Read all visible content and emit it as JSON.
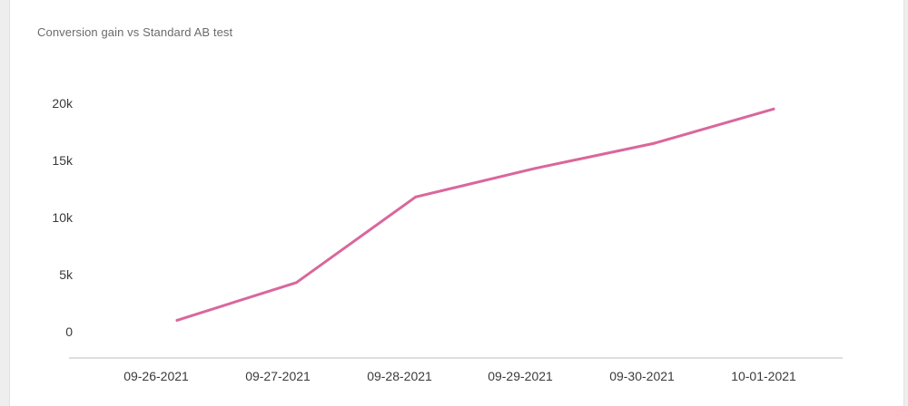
{
  "chart_data": {
    "type": "line",
    "title": "Conversion gain vs Standard AB test",
    "xlabel": "",
    "ylabel": "",
    "categories": [
      "09-26-2021",
      "09-27-2021",
      "09-28-2021",
      "09-29-2021",
      "09-30-2021",
      "10-01-2021"
    ],
    "y_ticks": [
      "0",
      "5k",
      "10k",
      "15k",
      "20k"
    ],
    "ylim": [
      0,
      20000
    ],
    "grid": false,
    "legend": "none",
    "series": [
      {
        "color": "#d9679c",
        "x": [
          "09-26-2021",
          "09-27-2021",
          "09-28-2021",
          "09-29-2021",
          "09-30-2021",
          "10-01-2021"
        ],
        "values": [
          1000,
          4300,
          11800,
          14300,
          16500,
          19500
        ]
      }
    ]
  }
}
